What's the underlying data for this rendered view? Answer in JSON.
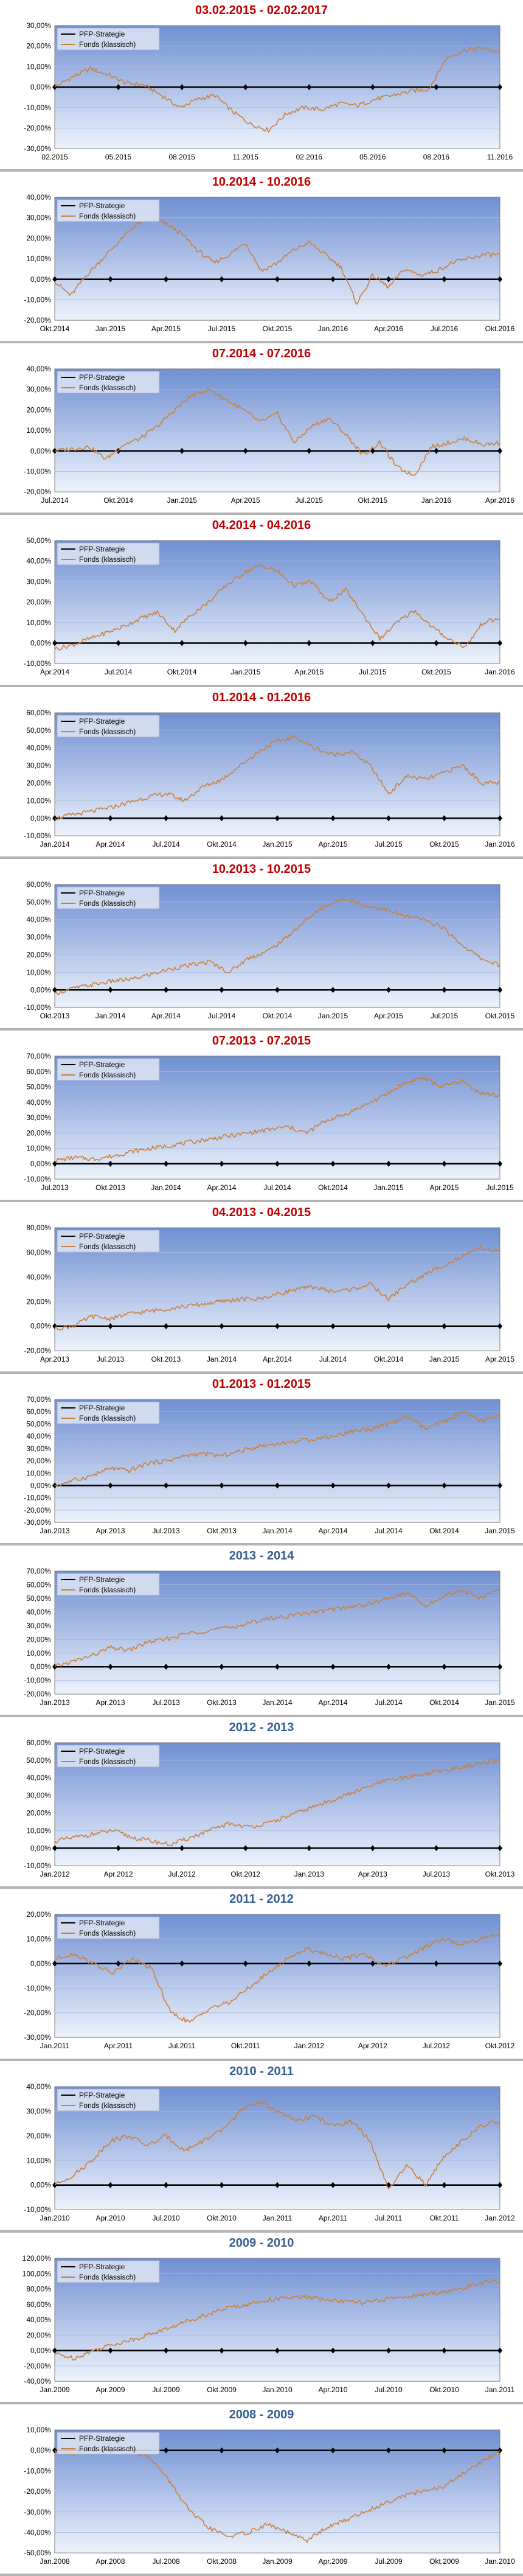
{
  "colors": {
    "title_red": "#c00000",
    "title_blue": "#365f91",
    "plot_top": "#6e8fd2",
    "plot_bottom": "#eef3fc",
    "series_fonds": "#c8803c",
    "series_pfp": "#000000",
    "gridline": "#a8bbe0",
    "separator": "#b3b3b3"
  },
  "chart_data": [
    {
      "type": "line",
      "title": "03.02.2015 - 02.02.2017",
      "title_color": "red",
      "y_ticks": [
        "30,00%",
        "20,00%",
        "10,00%",
        "0,00%",
        "-10,00%",
        "-20,00%",
        "-30,00%"
      ],
      "ylim": [
        -30,
        30
      ],
      "x_ticks": [
        "02.2015",
        "05.2015",
        "08.2015",
        "11.2015",
        "02.2016",
        "05.2016",
        "08.2016",
        "11.2016"
      ],
      "series": [
        {
          "name": "PFP-Strategie",
          "values": [
            0,
            0
          ]
        },
        {
          "name": "Fonds (klassisch)",
          "values": [
            0,
            5,
            9,
            6,
            2,
            1,
            -4,
            -10,
            -6,
            -4,
            -12,
            -18,
            -21,
            -13,
            -10,
            -11,
            -8,
            -9,
            -6,
            -4,
            -2,
            -1,
            14,
            18,
            19,
            17
          ]
        }
      ]
    },
    {
      "type": "line",
      "title": "10.2014 - 10.2016",
      "title_color": "red",
      "y_ticks": [
        "40,00%",
        "30,00%",
        "20,00%",
        "10,00%",
        "0,00%",
        "-10,00%",
        "-20,00%"
      ],
      "ylim": [
        -20,
        40
      ],
      "x_ticks": [
        "Okt.2014",
        "Jan.2015",
        "Apr.2015",
        "Jul.2015",
        "Okt.2015",
        "Jan.2016",
        "Apr.2016",
        "Jul.2016",
        "Okt.2016"
      ],
      "series": [
        {
          "name": "PFP-Strategie",
          "values": [
            0,
            0
          ]
        },
        {
          "name": "Fonds (klassisch)",
          "values": [
            -1,
            -8,
            2,
            10,
            18,
            26,
            30,
            27,
            22,
            14,
            8,
            12,
            18,
            4,
            8,
            14,
            18,
            12,
            6,
            -12,
            2,
            -4,
            5,
            2,
            4,
            8,
            10,
            12,
            12
          ]
        }
      ]
    },
    {
      "type": "line",
      "title": "07.2014 - 07.2016",
      "title_color": "red",
      "y_ticks": [
        "40,00%",
        "30,00%",
        "20,00%",
        "10,00%",
        "0,00%",
        "-10,00%",
        "-20,00%"
      ],
      "ylim": [
        -20,
        40
      ],
      "x_ticks": [
        "Jul.2014",
        "Okt.2014",
        "Jan.2015",
        "Apr.2015",
        "Jul.2015",
        "Okt.2015",
        "Jan.2016",
        "Apr.2016"
      ],
      "series": [
        {
          "name": "PFP-Strategie",
          "values": [
            0,
            0
          ]
        },
        {
          "name": "Fonds (klassisch)",
          "values": [
            0,
            1,
            2,
            -4,
            3,
            6,
            12,
            20,
            27,
            30,
            25,
            20,
            14,
            18,
            4,
            12,
            16,
            8,
            -2,
            4,
            -8,
            -12,
            2,
            4,
            6,
            3,
            4
          ]
        }
      ]
    },
    {
      "type": "line",
      "title": "04.2014 - 04.2016",
      "title_color": "red",
      "y_ticks": [
        "50,00%",
        "40,00%",
        "30,00%",
        "20,00%",
        "10,00%",
        "0,00%",
        "-10,00%"
      ],
      "ylim": [
        -10,
        50
      ],
      "x_ticks": [
        "Apr.2014",
        "Jul.2014",
        "Okt.2014",
        "Jan.2015",
        "Apr.2015",
        "Jul.2015",
        "Okt.2015",
        "Jan.2016"
      ],
      "series": [
        {
          "name": "PFP-Strategie",
          "values": [
            0,
            0
          ]
        },
        {
          "name": "Fonds (klassisch)",
          "values": [
            -3,
            -1,
            2,
            5,
            8,
            12,
            15,
            6,
            14,
            20,
            28,
            34,
            38,
            35,
            28,
            30,
            20,
            26,
            14,
            2,
            10,
            16,
            8,
            2,
            -2,
            10,
            12
          ]
        }
      ]
    },
    {
      "type": "line",
      "title": "01.2014 - 01.2016",
      "title_color": "red",
      "y_ticks": [
        "60,00%",
        "50,00%",
        "40,00%",
        "30,00%",
        "20,00%",
        "10,00%",
        "0,00%",
        "-10,00%"
      ],
      "ylim": [
        -10,
        60
      ],
      "x_ticks": [
        "Jan.2014",
        "Apr.2014",
        "Jul.2014",
        "Okt.2014",
        "Jan.2015",
        "Apr.2015",
        "Jul.2015",
        "Okt.2015",
        "Jan.2016"
      ],
      "series": [
        {
          "name": "PFP-Strategie",
          "values": [
            0,
            0
          ]
        },
        {
          "name": "Fonds (klassisch)",
          "values": [
            0,
            2,
            4,
            6,
            9,
            12,
            14,
            10,
            18,
            22,
            30,
            38,
            44,
            46,
            40,
            36,
            38,
            30,
            14,
            24,
            22,
            26,
            30,
            20,
            20
          ]
        }
      ]
    },
    {
      "type": "line",
      "title": "10.2013 - 10.2015",
      "title_color": "red",
      "y_ticks": [
        "60,00%",
        "50,00%",
        "40,00%",
        "30,00%",
        "20,00%",
        "10,00%",
        "0,00%",
        "-10,00%"
      ],
      "ylim": [
        -10,
        60
      ],
      "x_ticks": [
        "Okt.2013",
        "Jan.2014",
        "Apr.2014",
        "Jul.2014",
        "Okt.2014",
        "Jan.2015",
        "Apr.2015",
        "Jul.2015",
        "Okt.2015"
      ],
      "series": [
        {
          "name": "PFP-Strategie",
          "values": [
            0,
            0
          ]
        },
        {
          "name": "Fonds (klassisch)",
          "values": [
            -2,
            1,
            3,
            5,
            6,
            9,
            12,
            14,
            16,
            10,
            18,
            22,
            30,
            40,
            48,
            52,
            48,
            46,
            42,
            40,
            36,
            26,
            18,
            14
          ]
        }
      ]
    },
    {
      "type": "line",
      "title": "07.2013 - 07.2015",
      "title_color": "red",
      "y_ticks": [
        "70,00%",
        "60,00%",
        "50,00%",
        "40,00%",
        "30,00%",
        "20,00%",
        "10,00%",
        "0,00%",
        "-10,00%"
      ],
      "ylim": [
        -10,
        70
      ],
      "x_ticks": [
        "Jul.2013",
        "Okt.2013",
        "Jan.2014",
        "Apr.2014",
        "Jul.2014",
        "Okt.2014",
        "Jan.2015",
        "Apr.2015",
        "Jul.2015"
      ],
      "series": [
        {
          "name": "PFP-Strategie",
          "values": [
            0,
            0
          ]
        },
        {
          "name": "Fonds (klassisch)",
          "values": [
            2,
            4,
            3,
            5,
            8,
            10,
            12,
            14,
            16,
            18,
            20,
            22,
            24,
            20,
            28,
            32,
            38,
            44,
            52,
            56,
            50,
            54,
            46,
            44
          ]
        }
      ]
    },
    {
      "type": "line",
      "title": "04.2013 - 04.2015",
      "title_color": "red",
      "y_ticks": [
        "80,00%",
        "60,00%",
        "40,00%",
        "20,00%",
        "0,00%",
        "-20,00%"
      ],
      "ylim": [
        -20,
        80
      ],
      "x_ticks": [
        "Apr.2013",
        "Jul.2013",
        "Okt.2013",
        "Jan.2014",
        "Apr.2014",
        "Jul.2014",
        "Okt.2014",
        "Jan.2015",
        "Apr.2015"
      ],
      "series": [
        {
          "name": "PFP-Strategie",
          "values": [
            0,
            0
          ]
        },
        {
          "name": "Fonds (klassisch)",
          "values": [
            -2,
            0,
            8,
            6,
            10,
            12,
            14,
            16,
            18,
            20,
            22,
            22,
            26,
            30,
            32,
            28,
            30,
            34,
            22,
            34,
            42,
            50,
            56,
            64,
            60
          ]
        }
      ]
    },
    {
      "type": "line",
      "title": "01.2013 - 01.2015",
      "title_color": "red",
      "y_ticks": [
        "70,00%",
        "60,00%",
        "50,00%",
        "40,00%",
        "30,00%",
        "20,00%",
        "10,00%",
        "0,00%",
        "-10,00%",
        "-20,00%",
        "-30,00%"
      ],
      "ylim": [
        -30,
        70
      ],
      "x_ticks": [
        "Jan.2013",
        "Apr.2013",
        "Jul.2013",
        "Okt.2013",
        "Jan.2014",
        "Apr.2014",
        "Jul.2014",
        "Okt.2014",
        "Jan.2015"
      ],
      "series": [
        {
          "name": "PFP-Strategie",
          "values": [
            0,
            0
          ]
        },
        {
          "name": "Fonds (klassisch)",
          "values": [
            0,
            4,
            8,
            14,
            12,
            18,
            20,
            24,
            26,
            24,
            28,
            32,
            34,
            36,
            38,
            40,
            44,
            46,
            50,
            56,
            46,
            52,
            60,
            52,
            58
          ]
        }
      ]
    },
    {
      "type": "line",
      "title": "2013 - 2014",
      "title_color": "blue",
      "y_ticks": [
        "70,00%",
        "60,00%",
        "50,00%",
        "40,00%",
        "30,00%",
        "20,00%",
        "10,00%",
        "0,00%",
        "-10,00%",
        "-20,00%"
      ],
      "ylim": [
        -20,
        70
      ],
      "x_ticks": [
        "Jan.2013",
        "Apr.2013",
        "Jul.2013",
        "Okt.2013",
        "Jan.2014",
        "Apr.2014",
        "Jul.2014",
        "Okt.2014",
        "Jan.2015"
      ],
      "series": [
        {
          "name": "PFP-Strategie",
          "values": [
            0,
            0
          ]
        },
        {
          "name": "Fonds (klassisch)",
          "values": [
            0,
            4,
            8,
            14,
            12,
            18,
            20,
            24,
            26,
            28,
            30,
            34,
            36,
            38,
            40,
            42,
            44,
            46,
            50,
            54,
            44,
            52,
            56,
            50,
            58
          ]
        }
      ]
    },
    {
      "type": "line",
      "title": "2012 - 2013",
      "title_color": "blue",
      "y_ticks": [
        "60,00%",
        "50,00%",
        "40,00%",
        "30,00%",
        "20,00%",
        "10,00%",
        "0,00%",
        "-10,00%"
      ],
      "ylim": [
        -10,
        60
      ],
      "x_ticks": [
        "Jan.2012",
        "Apr.2012",
        "Jul.2012",
        "Okt.2012",
        "Jan.2013",
        "Apr.2013",
        "Jul.2013",
        "Okt.2013"
      ],
      "series": [
        {
          "name": "PFP-Strategie",
          "values": [
            0,
            0
          ]
        },
        {
          "name": "Fonds (klassisch)",
          "values": [
            4,
            6,
            8,
            10,
            6,
            4,
            2,
            6,
            10,
            14,
            12,
            14,
            18,
            22,
            26,
            30,
            34,
            38,
            40,
            42,
            44,
            46,
            48,
            50
          ]
        }
      ]
    },
    {
      "type": "line",
      "title": "2011 - 2012",
      "title_color": "blue",
      "y_ticks": [
        "20,00%",
        "10,00%",
        "0,00%",
        "-10,00%",
        "-20,00%",
        "-30,00%"
      ],
      "ylim": [
        -30,
        20
      ],
      "x_ticks": [
        "Jan.2011",
        "Apr.2011",
        "Jul.2011",
        "Okt.2011",
        "Jan.2012",
        "Apr.2012",
        "Jul.2012",
        "Okt.2012"
      ],
      "series": [
        {
          "name": "PFP-Strategie",
          "values": [
            0,
            0
          ]
        },
        {
          "name": "Fonds (klassisch)",
          "values": [
            2,
            4,
            0,
            -4,
            2,
            -2,
            -20,
            -24,
            -18,
            -16,
            -10,
            -4,
            2,
            6,
            4,
            2,
            4,
            -1,
            2,
            6,
            10,
            8,
            10,
            12
          ]
        }
      ]
    },
    {
      "type": "line",
      "title": "2010 - 2011",
      "title_color": "blue",
      "y_ticks": [
        "40,00%",
        "30,00%",
        "20,00%",
        "10,00%",
        "0,00%",
        "-10,00%"
      ],
      "ylim": [
        -10,
        40
      ],
      "x_ticks": [
        "Jan.2010",
        "Apr.2010",
        "Jul.2010",
        "Okt.2010",
        "Jan.2011",
        "Apr.2011",
        "Jul.2011",
        "Okt.2011",
        "Jan.2012"
      ],
      "series": [
        {
          "name": "PFP-Strategie",
          "values": [
            0,
            0
          ]
        },
        {
          "name": "Fonds (klassisch)",
          "values": [
            0,
            4,
            10,
            18,
            20,
            16,
            20,
            14,
            18,
            22,
            30,
            34,
            30,
            26,
            28,
            24,
            26,
            18,
            -2,
            8,
            0,
            12,
            18,
            24,
            26
          ]
        }
      ]
    },
    {
      "type": "line",
      "title": "2009 - 2010",
      "title_color": "blue",
      "y_ticks": [
        "120,00%",
        "100,00%",
        "80,00%",
        "60,00%",
        "40,00%",
        "20,00%",
        "0,00%",
        "-20,00%",
        "-40,00%"
      ],
      "ylim": [
        -40,
        120
      ],
      "x_ticks": [
        "Jan.2009",
        "Apr.2009",
        "Jul.2009",
        "Okt.2009",
        "Jan.2010",
        "Apr.2010",
        "Jul.2010",
        "Okt.2010",
        "Jan.2011"
      ],
      "series": [
        {
          "name": "PFP-Strategie",
          "values": [
            0,
            0
          ]
        },
        {
          "name": "Fonds (klassisch)",
          "values": [
            -4,
            -10,
            0,
            8,
            14,
            22,
            30,
            40,
            48,
            56,
            60,
            66,
            68,
            70,
            66,
            64,
            62,
            66,
            70,
            72,
            76,
            80,
            88,
            90
          ]
        }
      ]
    },
    {
      "type": "line",
      "title": "2008 - 2009",
      "title_color": "blue",
      "y_ticks": [
        "10,00%",
        "0,00%",
        "-10,00%",
        "-20,00%",
        "-30,00%",
        "-40,00%",
        "-50,00%"
      ],
      "ylim": [
        -50,
        10
      ],
      "x_ticks": [
        "Jan.2008",
        "Apr.2008",
        "Jul.2008",
        "Okt.2008",
        "Jan.2009",
        "Apr.2009",
        "Jul.2009",
        "Okt.2009",
        "Jan.2010"
      ],
      "series": [
        {
          "name": "PFP-Strategie",
          "values": [
            0,
            0
          ]
        },
        {
          "name": "Fonds (klassisch)",
          "values": [
            0,
            -2,
            0,
            2,
            0,
            -4,
            -16,
            -30,
            -38,
            -42,
            -40,
            -36,
            -40,
            -44,
            -38,
            -34,
            -30,
            -26,
            -22,
            -20,
            -18,
            -12,
            -6,
            0
          ]
        }
      ]
    }
  ]
}
